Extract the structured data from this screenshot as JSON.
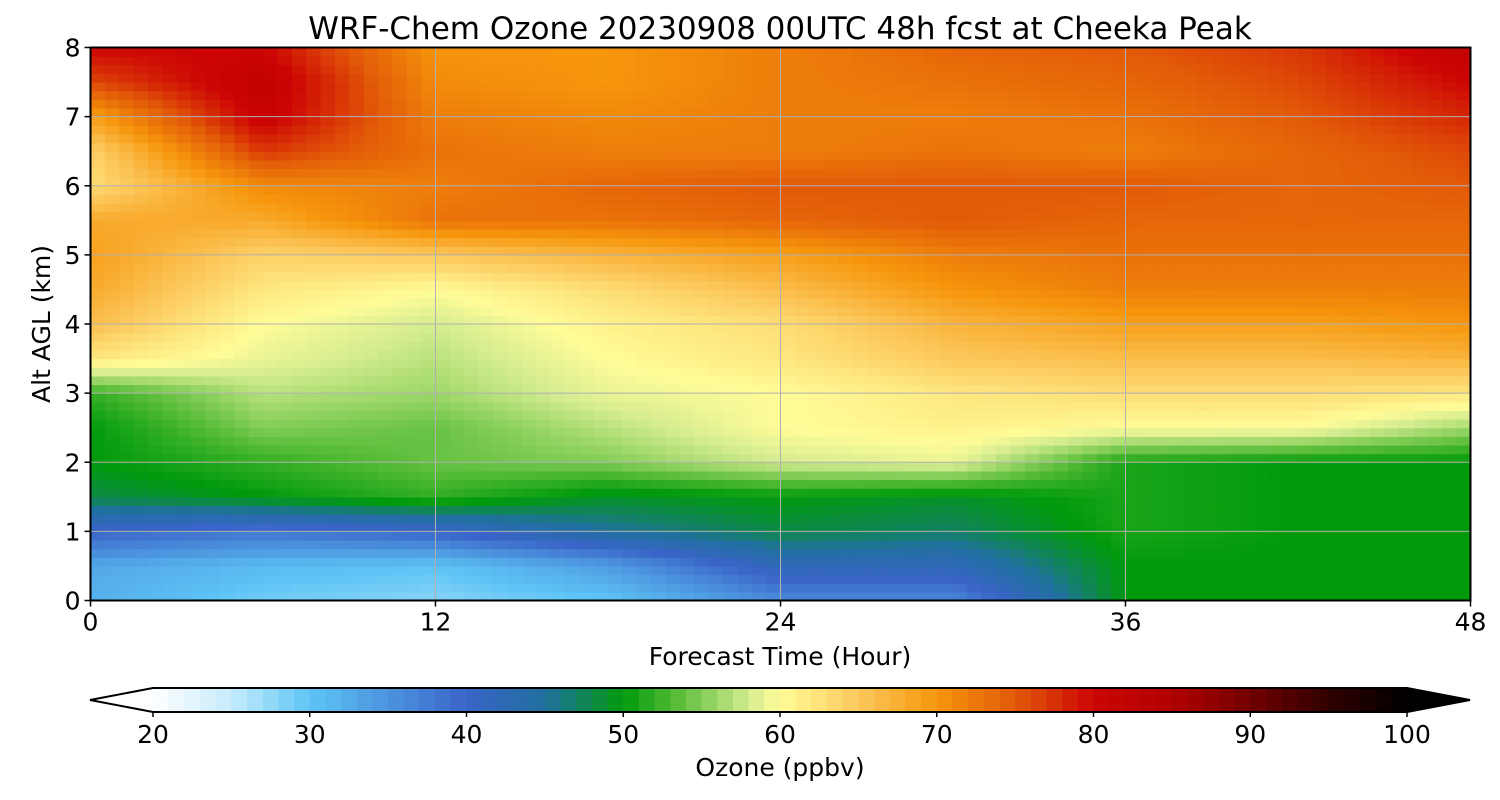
{
  "chart_data": {
    "type": "heatmap",
    "title": "WRF-Chem Ozone  20230908 00UTC 48h fcst at Cheeka Peak",
    "xlabel": "Forecast Time (Hour)",
    "ylabel": "Alt AGL (km)",
    "xlim": [
      0,
      48
    ],
    "ylim": [
      0,
      8
    ],
    "xticks": [
      "0",
      "12",
      "24",
      "36",
      "48"
    ],
    "yticks": [
      "0",
      "1",
      "2",
      "3",
      "4",
      "5",
      "6",
      "7",
      "8"
    ],
    "grid": true,
    "x": [
      0,
      6,
      12,
      18,
      24,
      30,
      36,
      42,
      48
    ],
    "y": [
      0,
      0.5,
      1,
      1.5,
      2,
      2.5,
      3,
      3.5,
      4,
      4.5,
      5,
      5.5,
      6,
      6.5,
      7,
      7.5,
      8
    ],
    "z": [
      [
        32,
        29,
        28,
        30,
        36,
        36,
        50,
        50,
        50
      ],
      [
        33,
        31,
        30,
        34,
        42,
        42,
        50,
        50,
        50
      ],
      [
        40,
        38,
        40,
        45,
        48,
        47,
        51,
        50,
        50
      ],
      [
        48,
        50,
        52,
        49,
        50,
        49,
        51,
        50,
        50
      ],
      [
        50,
        52,
        54,
        55,
        58,
        59,
        51,
        50,
        50
      ],
      [
        50,
        55,
        54,
        57,
        60,
        61,
        60,
        60,
        56
      ],
      [
        52,
        57,
        56,
        59,
        60,
        62,
        63,
        63,
        62
      ],
      [
        62,
        59,
        57,
        60,
        62,
        65,
        66,
        66,
        67
      ],
      [
        66,
        60,
        58,
        61,
        63,
        67,
        69,
        69,
        70
      ],
      [
        68,
        62,
        60,
        63,
        66,
        70,
        72,
        72,
        72
      ],
      [
        69,
        64,
        65,
        67,
        69,
        72,
        73,
        73,
        73
      ],
      [
        68,
        68,
        73,
        73,
        74,
        75,
        74,
        74,
        74
      ],
      [
        63,
        71,
        72,
        74,
        75,
        75,
        75,
        74,
        75
      ],
      [
        64,
        77,
        73,
        72,
        72,
        73,
        72,
        74,
        76
      ],
      [
        69,
        81,
        72,
        71,
        72,
        72,
        73,
        75,
        78
      ],
      [
        76,
        82,
        71,
        70,
        72,
        73,
        74,
        76,
        80
      ],
      [
        80,
        80,
        70,
        70,
        72,
        74,
        75,
        77,
        82
      ]
    ],
    "colorbar": {
      "label": "Ozone  (ppbv)",
      "ticks": [
        "20",
        "30",
        "40",
        "50",
        "60",
        "70",
        "80",
        "90",
        "100"
      ],
      "min": 20,
      "max": 100,
      "extend": "both",
      "stops": [
        {
          "v": 20,
          "c": "#ffffff"
        },
        {
          "v": 25,
          "c": "#c6ecfc"
        },
        {
          "v": 30,
          "c": "#5ec4f5"
        },
        {
          "v": 40,
          "c": "#3a64c8"
        },
        {
          "v": 45,
          "c": "#2070a0"
        },
        {
          "v": 50,
          "c": "#009a0c"
        },
        {
          "v": 53,
          "c": "#4cb830"
        },
        {
          "v": 58,
          "c": "#d4ec90"
        },
        {
          "v": 60,
          "c": "#fffc98"
        },
        {
          "v": 65,
          "c": "#fcc85c"
        },
        {
          "v": 70,
          "c": "#f6960c"
        },
        {
          "v": 75,
          "c": "#e25a08"
        },
        {
          "v": 80,
          "c": "#cc0404"
        },
        {
          "v": 85,
          "c": "#b20000"
        },
        {
          "v": 90,
          "c": "#720000"
        },
        {
          "v": 95,
          "c": "#300000"
        },
        {
          "v": 100,
          "c": "#000000"
        }
      ]
    }
  }
}
